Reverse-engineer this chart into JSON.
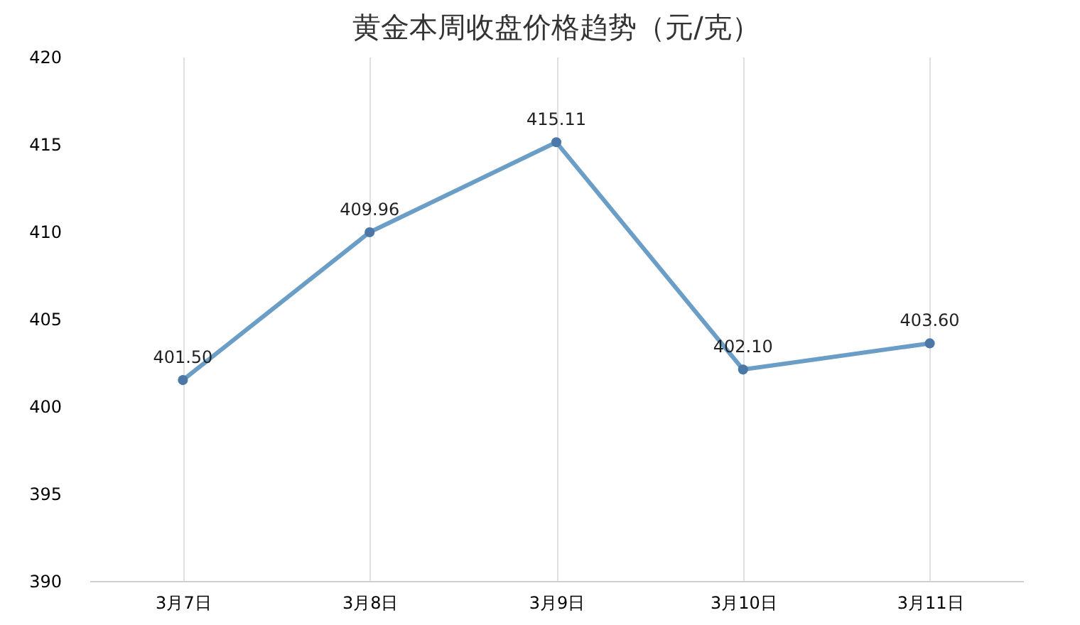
{
  "chart_data": {
    "type": "line",
    "title": "黄金本周收盘价格趋势（元/克）",
    "categories": [
      "3月7日",
      "3月8日",
      "3月9日",
      "3月10日",
      "3月11日"
    ],
    "series": [
      {
        "color": "#6a9ec6",
        "values": [
          401.5,
          409.96,
          415.11,
          402.1,
          403.6
        ]
      }
    ],
    "ylim": [
      390,
      420
    ],
    "yticks": [
      390,
      395,
      400,
      405,
      410,
      415,
      420
    ],
    "value_labels": [
      "401.50",
      "409.96",
      "415.11",
      "402.10",
      "403.60"
    ],
    "marker": "circle",
    "grid": "x"
  }
}
